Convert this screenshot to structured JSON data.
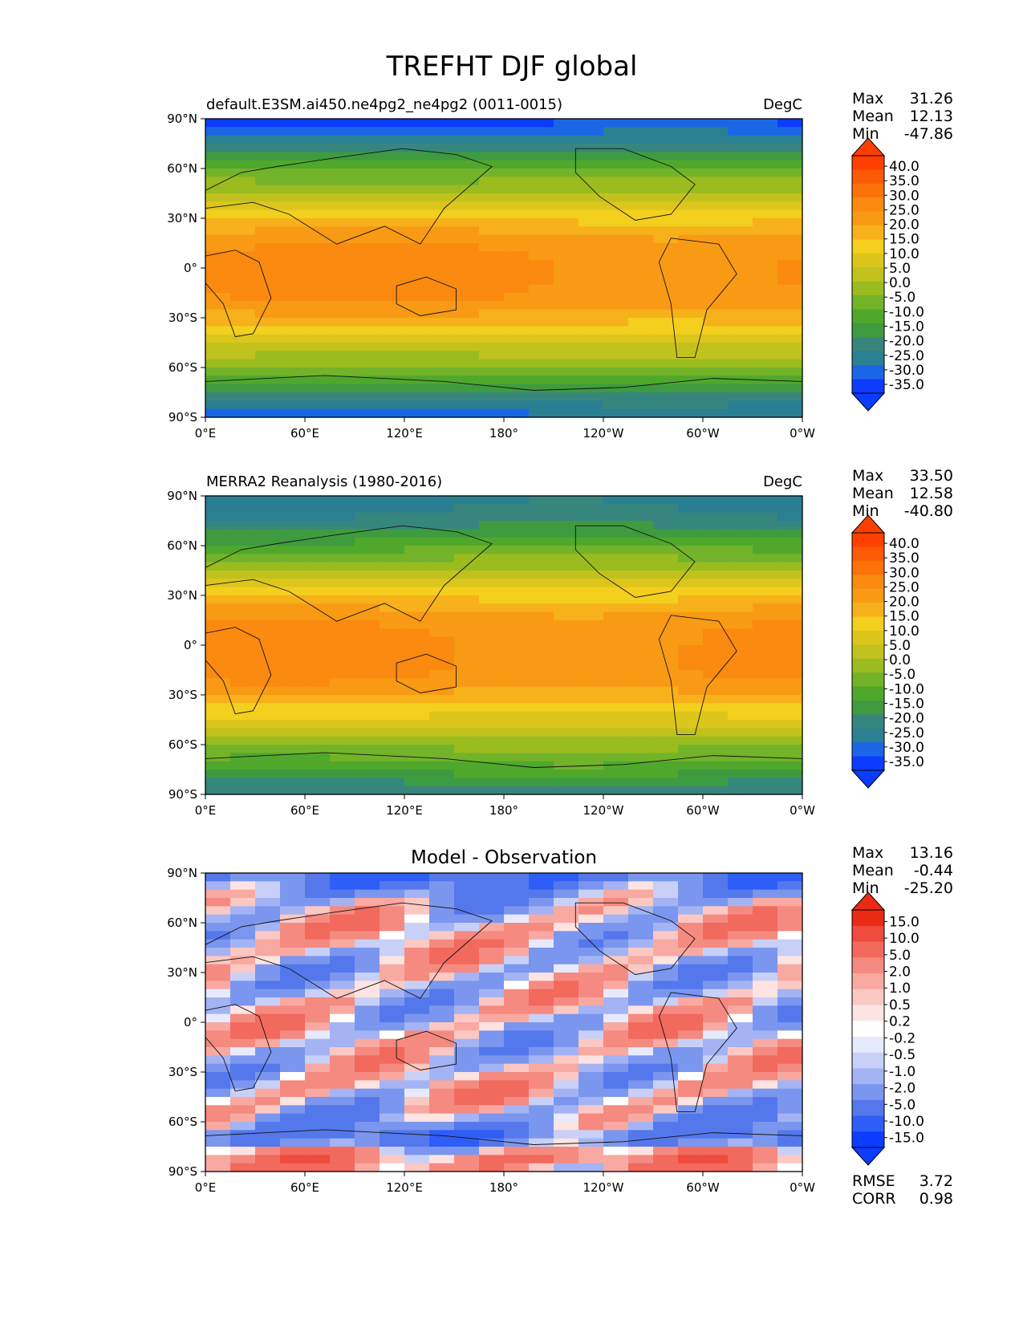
{
  "figure_title": "TREFHT DJF global",
  "colors": {
    "colormap_abs": [
      "#0b3cff",
      "#1a66e6",
      "#2a7f93",
      "#37867e",
      "#3f9b3f",
      "#4fa82c",
      "#72b32a",
      "#9bbc1e",
      "#c2c21f",
      "#ddc61c",
      "#f3cf1e",
      "#f7b11a",
      "#f99a14",
      "#fb8a10",
      "#fc7209",
      "#fd5a05",
      "#ff3f00"
    ],
    "colormap_diff": [
      "#0b3cff",
      "#2f5ef6",
      "#5478ec",
      "#7b96ee",
      "#a4b3f3",
      "#c8d0f8",
      "#e6eafc",
      "#ffffff",
      "#fde3e1",
      "#fbc8c3",
      "#f8a9a1",
      "#f58a80",
      "#f2695e",
      "#ee4b3c",
      "#eb2a16"
    ]
  },
  "chart_data": [
    {
      "type": "heatmap",
      "name": "model",
      "title_left": "default.E3SM.ai450.ne4pg2_ne4pg2 (0011-0015)",
      "title_center": "",
      "units": "DegC",
      "x_ticks": [
        "0°E",
        "60°E",
        "120°E",
        "180°",
        "120°W",
        "60°W",
        "0°W"
      ],
      "y_ticks": [
        "90°N",
        "60°N",
        "30°N",
        "0°",
        "30°S",
        "60°S",
        "90°S"
      ],
      "lon_range": [
        0,
        360
      ],
      "lat_range": [
        -90,
        90
      ],
      "stats": [
        {
          "label": "Max",
          "value": "31.26"
        },
        {
          "label": "Mean",
          "value": "12.13"
        },
        {
          "label": "Min",
          "value": "-47.86"
        }
      ],
      "colorbar_ticks": [
        "40.0",
        "35.0",
        "30.0",
        "25.0",
        "20.0",
        "15.0",
        "10.0",
        "5.0",
        "0.0",
        "-5.0",
        "-10.0",
        "-15.0",
        "-20.0",
        "-25.0",
        "-30.0",
        "-35.0"
      ],
      "colorbar_extend": "both",
      "extra_stats": [],
      "zonal_profile_lat": [
        90,
        80,
        70,
        60,
        50,
        40,
        30,
        20,
        10,
        0,
        -10,
        -20,
        -30,
        -40,
        -50,
        -60,
        -70,
        -80,
        -90
      ],
      "zonal_profile_degc": [
        -38,
        -30,
        -20,
        -10,
        -3,
        6,
        14,
        21,
        25,
        26,
        26,
        24,
        18,
        10,
        2,
        -5,
        -15,
        -25,
        -32
      ]
    },
    {
      "type": "heatmap",
      "name": "observation",
      "title_left": "MERRA2 Reanalysis (1980-2016)",
      "title_center": "",
      "units": "DegC",
      "x_ticks": [
        "0°E",
        "60°E",
        "120°E",
        "180°",
        "120°W",
        "60°W",
        "0°W"
      ],
      "y_ticks": [
        "90°N",
        "60°N",
        "30°N",
        "0°",
        "30°S",
        "60°S",
        "90°S"
      ],
      "lon_range": [
        0,
        360
      ],
      "lat_range": [
        -90,
        90
      ],
      "stats": [
        {
          "label": "Max",
          "value": "33.50"
        },
        {
          "label": "Mean",
          "value": "12.58"
        },
        {
          "label": "Min",
          "value": "-40.80"
        }
      ],
      "colorbar_ticks": [
        "40.0",
        "35.0",
        "30.0",
        "25.0",
        "20.0",
        "15.0",
        "10.0",
        "5.0",
        "0.0",
        "-5.0",
        "-10.0",
        "-15.0",
        "-20.0",
        "-25.0",
        "-30.0",
        "-35.0"
      ],
      "colorbar_extend": "both",
      "extra_stats": [],
      "zonal_profile_lat": [
        90,
        80,
        70,
        60,
        50,
        40,
        30,
        20,
        10,
        0,
        -10,
        -20,
        -30,
        -40,
        -50,
        -60,
        -70,
        -80,
        -90
      ],
      "zonal_profile_degc": [
        -28,
        -25,
        -20,
        -12,
        -3,
        5,
        14,
        21,
        25,
        26,
        26,
        25,
        19,
        12,
        4,
        -4,
        -10,
        -18,
        -24
      ]
    },
    {
      "type": "heatmap",
      "name": "difference",
      "title_left": "",
      "title_center": "Model - Observation",
      "units": "",
      "x_ticks": [
        "0°E",
        "60°E",
        "120°E",
        "180°",
        "120°W",
        "60°W",
        "0°W"
      ],
      "y_ticks": [
        "90°N",
        "60°N",
        "30°N",
        "0°",
        "30°S",
        "60°S",
        "90°S"
      ],
      "lon_range": [
        0,
        360
      ],
      "lat_range": [
        -90,
        90
      ],
      "stats": [
        {
          "label": "Max",
          "value": "13.16"
        },
        {
          "label": "Mean",
          "value": "-0.44"
        },
        {
          "label": "Min",
          "value": "-25.20"
        }
      ],
      "colorbar_ticks": [
        "15.0",
        "10.0",
        "5.0",
        "2.0",
        "1.0",
        "0.5",
        "0.2",
        "-0.2",
        "-0.5",
        "-1.0",
        "-2.0",
        "-5.0",
        "-10.0",
        "-15.0"
      ],
      "colorbar_extend": "both",
      "extra_stats": [
        {
          "label": "RMSE",
          "value": "3.72"
        },
        {
          "label": "CORR",
          "value": "0.98"
        }
      ],
      "zonal_profile_lat": [
        90,
        80,
        70,
        60,
        50,
        40,
        30,
        20,
        10,
        0,
        -10,
        -20,
        -30,
        -40,
        -50,
        -60,
        -70,
        -80,
        -90
      ],
      "zonal_profile_degc": [
        -10,
        -5,
        -1,
        1,
        1,
        0,
        -1,
        -1,
        0,
        0,
        0,
        -1,
        0,
        1,
        0,
        -3,
        -8,
        5,
        3
      ]
    }
  ]
}
